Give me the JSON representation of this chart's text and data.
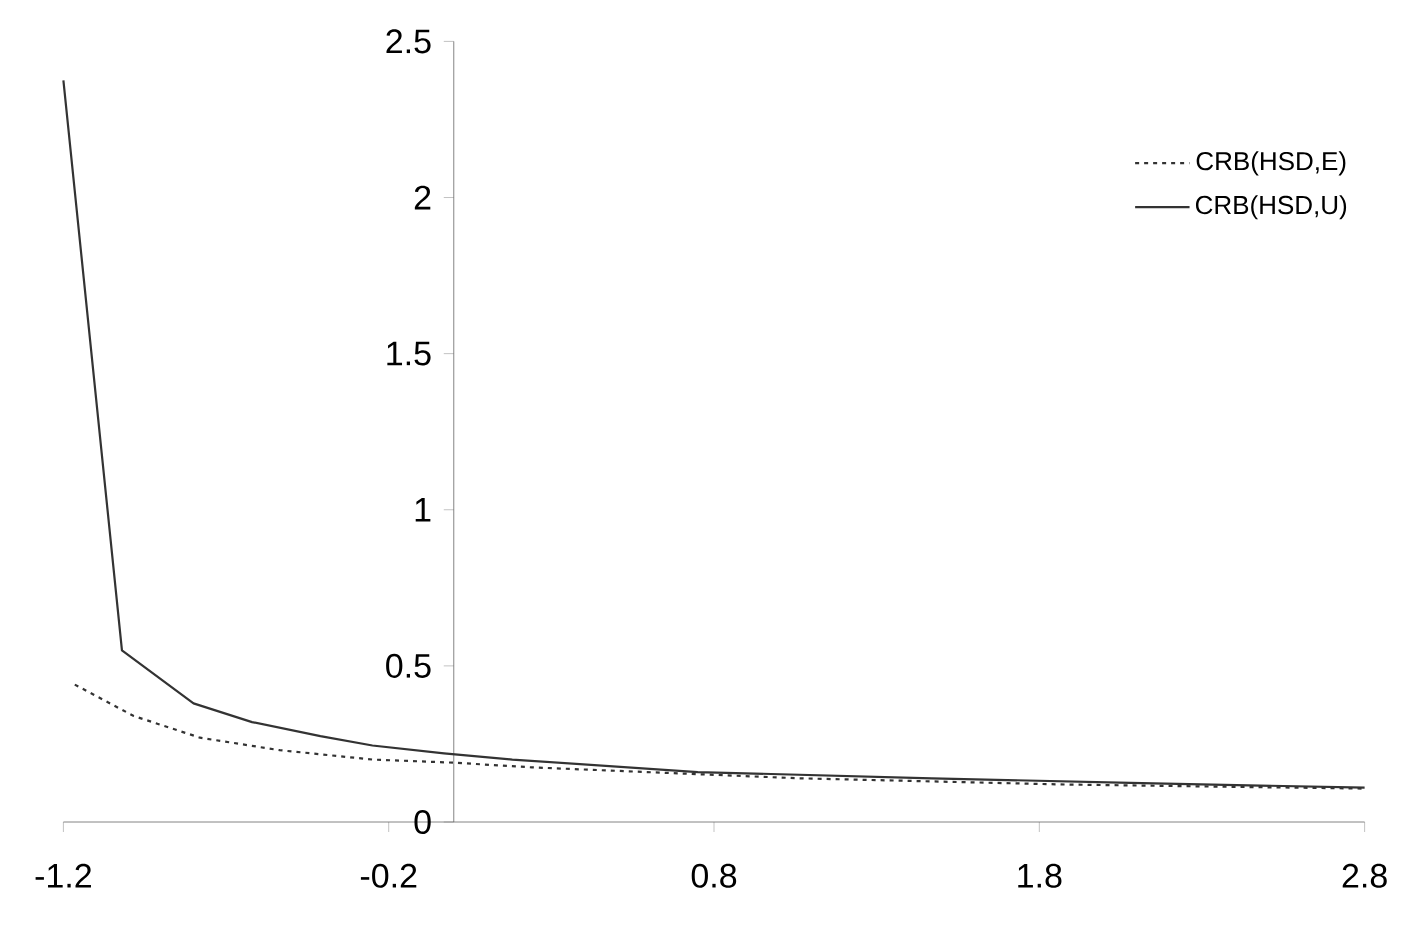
{
  "chart_data": {
    "type": "line",
    "xlim": [
      -1.2,
      2.8
    ],
    "ylim": [
      0,
      2.5
    ],
    "xticks": [
      -1.2,
      -0.2,
      0.8,
      1.8,
      2.8
    ],
    "yticks": [
      0,
      0.5,
      1,
      1.5,
      2,
      2.5
    ],
    "grid": false,
    "legend": "top right",
    "marker": "none",
    "series": [
      {
        "name": "CRB(HSD,E)",
        "color": "#333333",
        "line_style": "dotted",
        "x": [
          -1.165,
          -0.985,
          -0.78,
          -0.535,
          -0.25,
          0,
          0.24,
          1.06,
          1.88,
          2.8
        ],
        "values": [
          0.44,
          0.34,
          0.27,
          0.23,
          0.2,
          0.19,
          0.175,
          0.14,
          0.12,
          0.107
        ]
      },
      {
        "name": "CRB(HSD,U)",
        "color": "#333333",
        "line_style": "solid",
        "x": [
          -1.2,
          -1.02,
          -0.8,
          -0.62,
          -0.41,
          -0.25,
          -0.03,
          0.18,
          0.75,
          1.47,
          2.08,
          2.8
        ],
        "values": [
          2.375,
          0.55,
          0.38,
          0.32,
          0.275,
          0.245,
          0.22,
          0.2,
          0.16,
          0.14,
          0.125,
          0.11
        ]
      }
    ]
  }
}
